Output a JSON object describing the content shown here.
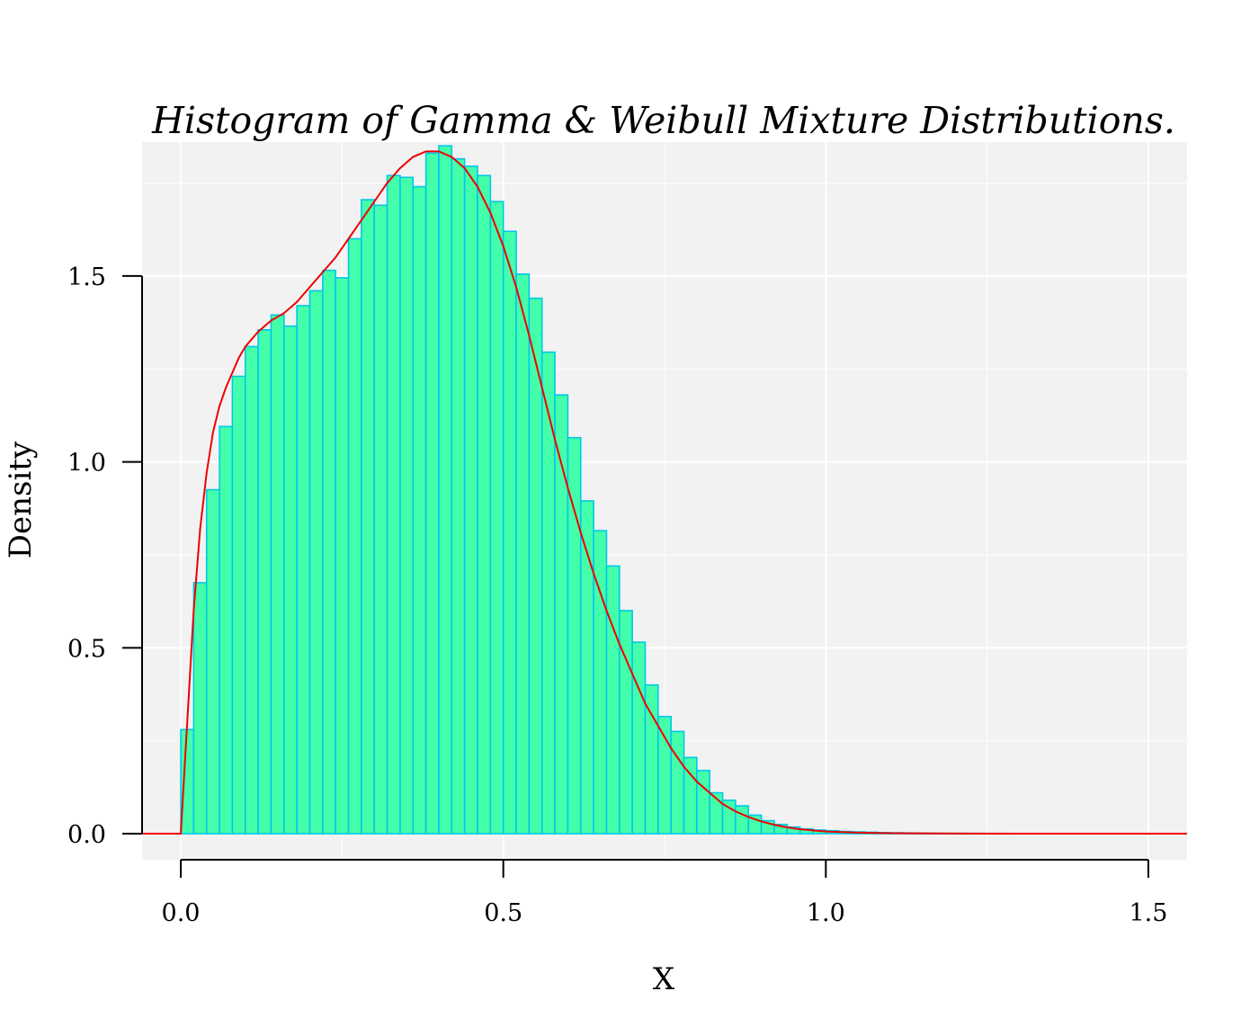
{
  "chart_data": {
    "type": "bar",
    "title": "Histogram of Gamma & Weibull Mixture Distributions.",
    "xlabel": "X",
    "ylabel": "Density",
    "xlim": [
      -0.06,
      1.56
    ],
    "ylim": [
      -0.07,
      1.86
    ],
    "x_ticks": [
      "0.0",
      "0.5",
      "1.0",
      "1.5"
    ],
    "y_ticks": [
      "0.0",
      "0.5",
      "1.0",
      "1.5"
    ],
    "grid": true,
    "colors": {
      "panel_background": "#f2f2f2",
      "bar_fill": "#44ffaa",
      "bar_border": "#00c8e8",
      "density_curve": "#ee0000"
    },
    "histogram": {
      "bin_width": 0.02,
      "bin_start": 0.0,
      "densities": [
        0.28,
        0.675,
        0.925,
        1.095,
        1.23,
        1.31,
        1.355,
        1.395,
        1.365,
        1.42,
        1.46,
        1.515,
        1.495,
        1.6,
        1.705,
        1.69,
        1.77,
        1.765,
        1.74,
        1.83,
        1.85,
        1.815,
        1.795,
        1.77,
        1.7,
        1.62,
        1.505,
        1.44,
        1.295,
        1.18,
        1.065,
        0.895,
        0.815,
        0.72,
        0.6,
        0.515,
        0.4,
        0.315,
        0.275,
        0.205,
        0.17,
        0.11,
        0.09,
        0.075,
        0.05,
        0.035,
        0.025,
        0.018,
        0.013,
        0.01,
        0.008,
        0.006,
        0.005,
        0.004,
        0.003,
        0.0025,
        0.002,
        0.0015,
        0.0012,
        0.001,
        0.001,
        0.0008,
        0.0007,
        0.0006,
        0.0005,
        0.0004,
        0.0004,
        0.0003,
        0.0003,
        0.0002,
        0.0002,
        0.0002,
        0.0001,
        0.0001,
        0.0001,
        0.0001
      ]
    },
    "density_curve": {
      "x": [
        0.0,
        0.01,
        0.02,
        0.03,
        0.04,
        0.05,
        0.06,
        0.07,
        0.08,
        0.09,
        0.1,
        0.12,
        0.14,
        0.16,
        0.18,
        0.2,
        0.22,
        0.24,
        0.26,
        0.28,
        0.3,
        0.32,
        0.34,
        0.36,
        0.38,
        0.4,
        0.42,
        0.44,
        0.46,
        0.48,
        0.5,
        0.52,
        0.54,
        0.56,
        0.58,
        0.6,
        0.62,
        0.64,
        0.66,
        0.68,
        0.7,
        0.72,
        0.74,
        0.76,
        0.78,
        0.8,
        0.82,
        0.84,
        0.86,
        0.88,
        0.9,
        0.92,
        0.94,
        0.96,
        0.98,
        1.0,
        1.05,
        1.1,
        1.2,
        1.3,
        1.4,
        1.5,
        1.56
      ],
      "y": [
        0.0,
        0.3,
        0.6,
        0.82,
        0.97,
        1.08,
        1.15,
        1.2,
        1.24,
        1.28,
        1.31,
        1.35,
        1.38,
        1.4,
        1.43,
        1.47,
        1.51,
        1.55,
        1.6,
        1.65,
        1.7,
        1.75,
        1.79,
        1.82,
        1.835,
        1.835,
        1.82,
        1.79,
        1.74,
        1.67,
        1.58,
        1.47,
        1.34,
        1.2,
        1.06,
        0.93,
        0.81,
        0.7,
        0.6,
        0.51,
        0.43,
        0.35,
        0.29,
        0.23,
        0.18,
        0.14,
        0.11,
        0.08,
        0.06,
        0.045,
        0.033,
        0.024,
        0.017,
        0.012,
        0.009,
        0.006,
        0.003,
        0.0015,
        0.0005,
        0.0002,
        0.0001,
        0.0,
        0.0
      ]
    }
  }
}
